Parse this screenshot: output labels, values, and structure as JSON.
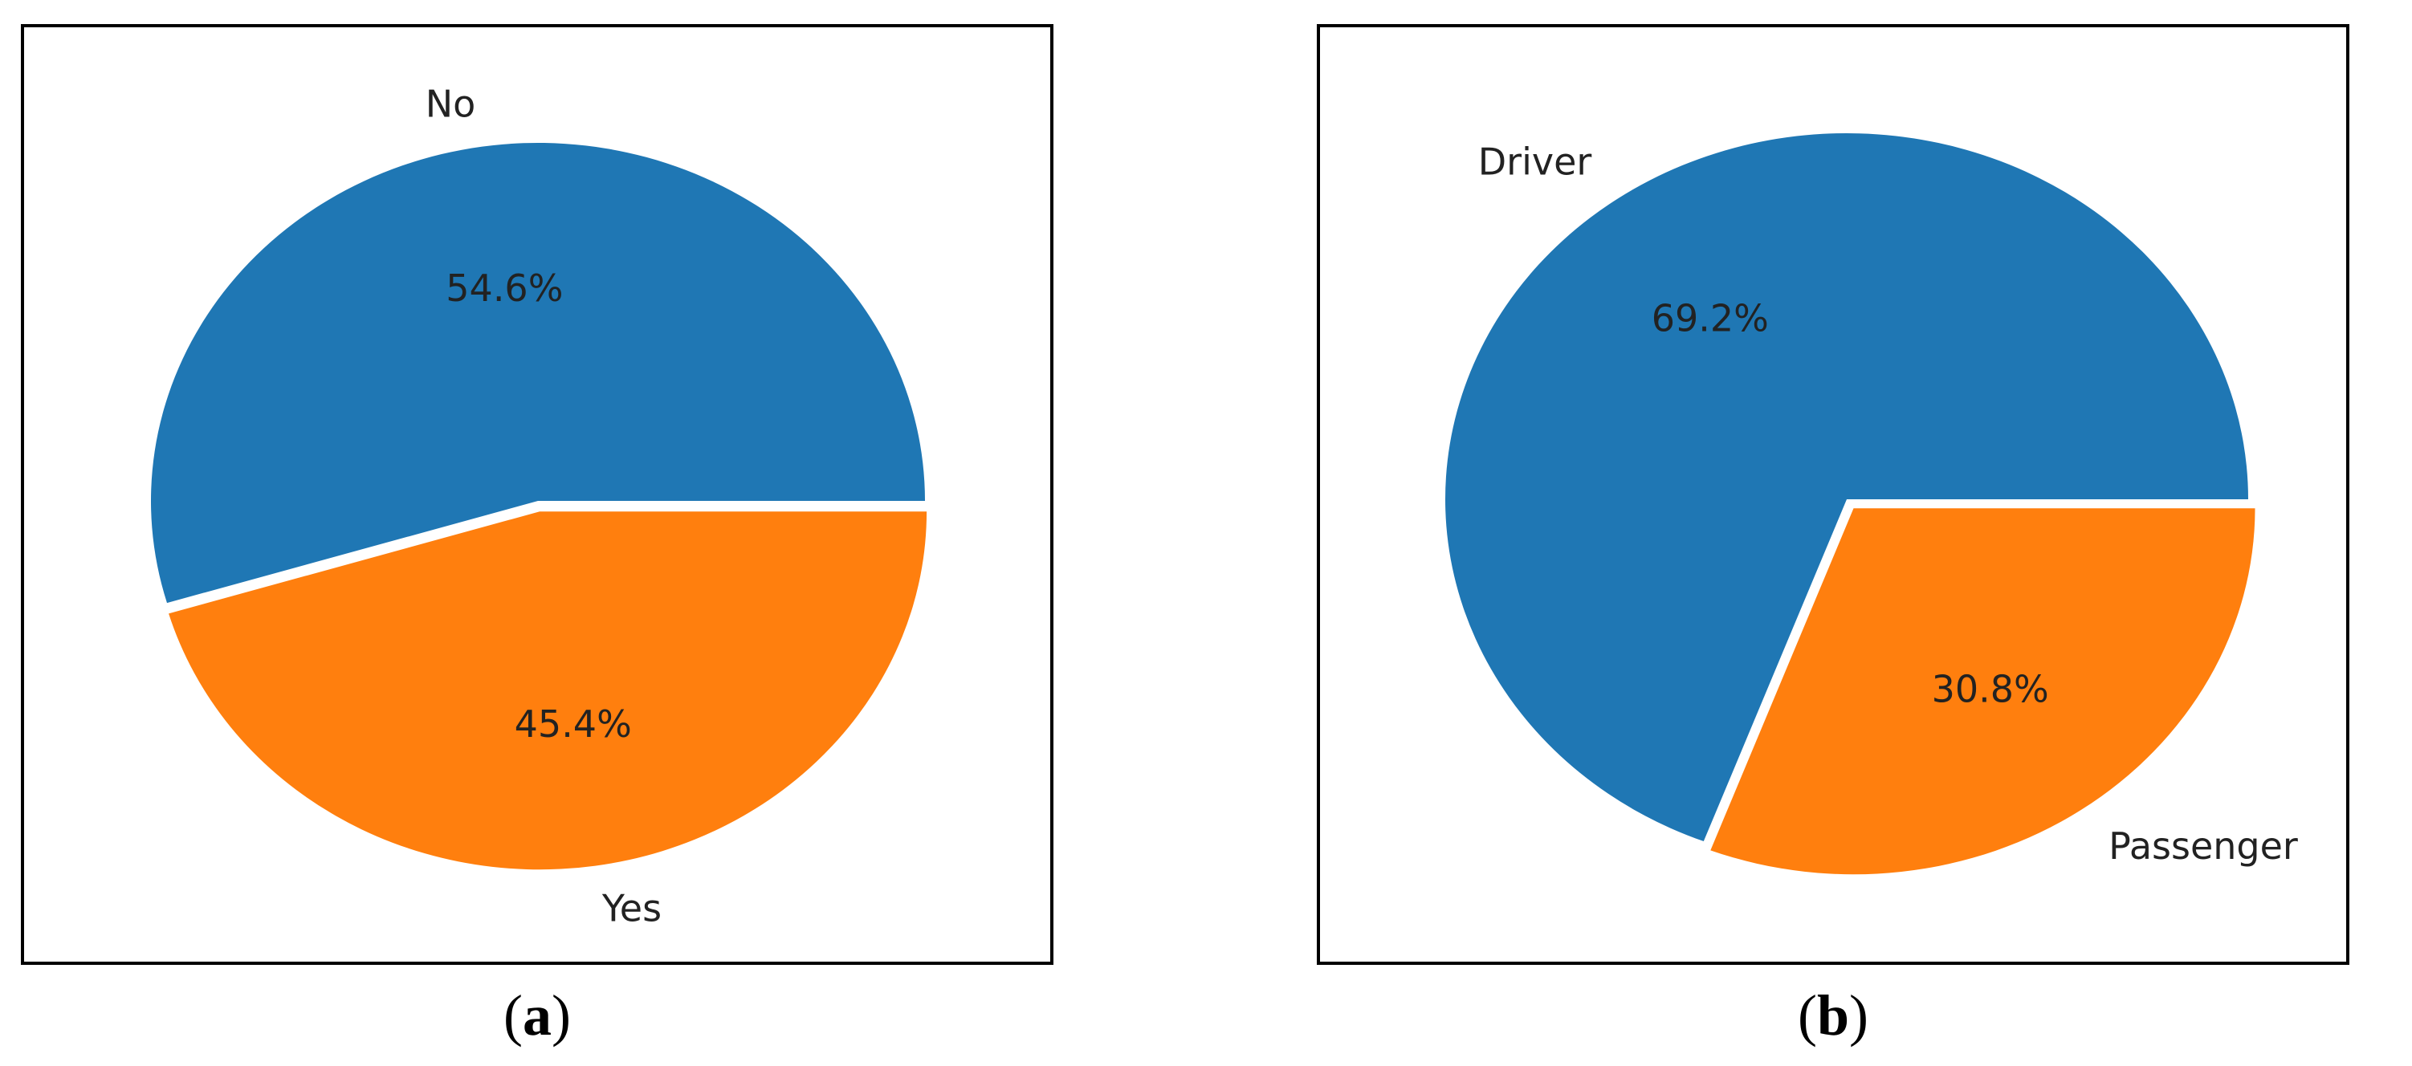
{
  "chart_data": [
    {
      "type": "pie",
      "panel_label": "a",
      "categories": [
        "No",
        "Yes"
      ],
      "values": [
        54.6,
        45.4
      ],
      "value_labels": [
        "54.6%",
        "45.4%"
      ],
      "colors": [
        "#1f77b4",
        "#ff7f0e"
      ],
      "explode": [
        0,
        0.03
      ],
      "start_angle": 0,
      "direction": "counterclockwise"
    },
    {
      "type": "pie",
      "panel_label": "b",
      "categories": [
        "Driver",
        "Passenger"
      ],
      "values": [
        69.2,
        30.8
      ],
      "value_labels": [
        "69.2%",
        "30.8%"
      ],
      "colors": [
        "#1f77b4",
        "#ff7f0e"
      ],
      "explode": [
        0,
        0.03
      ],
      "start_angle": 0,
      "direction": "counterclockwise"
    }
  ]
}
